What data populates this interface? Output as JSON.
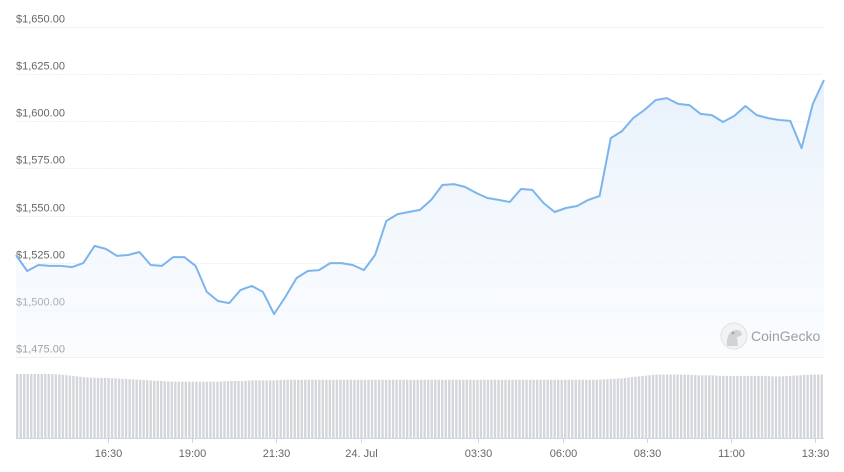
{
  "chart_data": {
    "type": "line",
    "title": "",
    "xlabel": "",
    "ylabel": "",
    "ylim": [
      1475,
      1650
    ],
    "y_ticks": [
      "$1,650.00",
      "$1,625.00",
      "$1,600.00",
      "$1,575.00",
      "$1,550.00",
      "$1,525.00",
      "$1,500.00",
      "$1,475.00"
    ],
    "y_tick_values": [
      1650,
      1625,
      1600,
      1575,
      1550,
      1525,
      1500,
      1475
    ],
    "x_ticks": [
      {
        "label": "16:30",
        "time": "23 Jul 16:30"
      },
      {
        "label": "19:00",
        "time": "23 Jul 19:00"
      },
      {
        "label": "21:30",
        "time": "23 Jul 21:30"
      },
      {
        "label": "24. Jul",
        "time": "24 Jul 00:00"
      },
      {
        "label": "03:30",
        "time": "24 Jul 03:30"
      },
      {
        "label": "06:00",
        "time": "24 Jul 06:00"
      },
      {
        "label": "08:30",
        "time": "24 Jul 08:30"
      },
      {
        "label": "11:00",
        "time": "24 Jul 11:00"
      },
      {
        "label": "13:30",
        "time": "24 Jul 13:30"
      }
    ],
    "grid": true,
    "line_color": "#7cb5ec",
    "fill_color": "#eaf3fc",
    "volume_color": "#d3d6da",
    "x": [
      "23 Jul 13:46",
      "23 Jul 14:06",
      "23 Jul 14:26",
      "23 Jul 14:46",
      "23 Jul 15:06",
      "23 Jul 15:26",
      "23 Jul 15:46",
      "23 Jul 16:06",
      "23 Jul 16:26",
      "23 Jul 16:46",
      "23 Jul 17:06",
      "23 Jul 17:26",
      "23 Jul 17:46",
      "23 Jul 18:06",
      "23 Jul 18:26",
      "23 Jul 18:46",
      "23 Jul 19:06",
      "23 Jul 19:26",
      "23 Jul 19:46",
      "23 Jul 20:06",
      "23 Jul 20:26",
      "23 Jul 20:46",
      "23 Jul 21:06",
      "23 Jul 21:26",
      "23 Jul 21:46",
      "23 Jul 22:06",
      "23 Jul 22:26",
      "23 Jul 22:46",
      "23 Jul 23:06",
      "23 Jul 23:26",
      "23 Jul 23:46",
      "24 Jul 00:06",
      "24 Jul 00:26",
      "24 Jul 00:46",
      "24 Jul 01:06",
      "24 Jul 01:26",
      "24 Jul 01:46",
      "24 Jul 02:06",
      "24 Jul 02:26",
      "24 Jul 02:46",
      "24 Jul 03:06",
      "24 Jul 03:26",
      "24 Jul 03:46",
      "24 Jul 04:06",
      "24 Jul 04:26",
      "24 Jul 04:46",
      "24 Jul 05:06",
      "24 Jul 05:26",
      "24 Jul 05:46",
      "24 Jul 06:06",
      "24 Jul 06:26",
      "24 Jul 06:46",
      "24 Jul 07:06",
      "24 Jul 07:26",
      "24 Jul 07:46",
      "24 Jul 08:06",
      "24 Jul 08:26",
      "24 Jul 08:46",
      "24 Jul 09:06",
      "24 Jul 09:26",
      "24 Jul 09:46",
      "24 Jul 10:06",
      "24 Jul 10:26",
      "24 Jul 10:46",
      "24 Jul 11:06",
      "24 Jul 11:26",
      "24 Jul 11:46",
      "24 Jul 12:06",
      "24 Jul 12:26",
      "24 Jul 12:46",
      "24 Jul 13:06",
      "24 Jul 13:26",
      "24 Jul 13:46"
    ],
    "series": [
      {
        "values": [
          1529.1,
          1520.6,
          1523.8,
          1523.3,
          1523.3,
          1522.7,
          1524.8,
          1533.9,
          1532.3,
          1528.6,
          1529.1,
          1530.7,
          1523.8,
          1523.3,
          1528.0,
          1528.0,
          1523.3,
          1509.5,
          1504.7,
          1503.6,
          1510.5,
          1512.7,
          1509.5,
          1497.8,
          1506.8,
          1516.9,
          1520.6,
          1521.1,
          1524.8,
          1524.8,
          1523.8,
          1521.1,
          1529.1,
          1547.1,
          1550.8,
          1551.9,
          1553.0,
          1558.3,
          1566.2,
          1566.7,
          1565.2,
          1562.0,
          1559.3,
          1558.3,
          1557.2,
          1564.1,
          1563.6,
          1556.7,
          1551.9,
          1554.0,
          1555.1,
          1558.3,
          1560.4,
          1591.1,
          1594.8,
          1601.7,
          1606.0,
          1611.3,
          1612.3,
          1609.2,
          1608.6,
          1603.9,
          1603.3,
          1599.6,
          1602.8,
          1608.1,
          1603.3,
          1601.7,
          1600.7,
          1600.2,
          1585.8,
          1609.2,
          1621.9
        ]
      }
    ],
    "volume_relative": [
      100,
      100,
      100,
      100,
      99,
      97,
      95,
      94,
      94,
      93,
      92,
      91,
      90,
      89,
      88,
      88,
      88,
      88,
      88,
      89,
      89,
      90,
      90,
      90,
      91,
      91,
      91,
      91,
      91,
      91,
      91,
      91,
      91,
      91,
      91,
      91,
      91,
      91,
      91,
      91,
      91,
      91,
      91,
      91,
      91,
      91,
      91,
      91,
      91,
      91,
      91,
      91,
      91,
      92,
      93,
      95,
      97,
      99,
      99,
      99,
      99,
      98,
      98,
      97,
      97,
      97,
      97,
      97,
      96,
      97,
      98,
      99,
      99
    ]
  },
  "watermark": {
    "text": "CoinGecko"
  }
}
